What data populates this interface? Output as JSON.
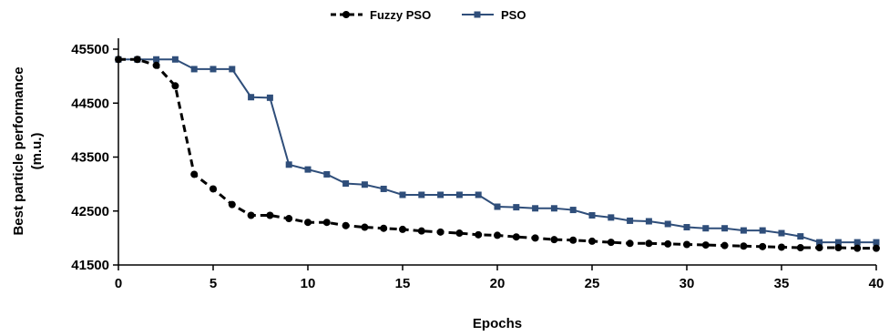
{
  "chart_data": {
    "type": "line",
    "xlabel": "Epochs",
    "ylabel": [
      "Best particle performance",
      "(m.u.)"
    ],
    "xlim": [
      0,
      40
    ],
    "ylim": [
      41500,
      45500
    ],
    "xticks": [
      "0",
      "5",
      "10",
      "15",
      "20",
      "25",
      "30",
      "35",
      "40"
    ],
    "yticks": [
      "41500",
      "42500",
      "43500",
      "44500",
      "45500"
    ],
    "grid": false,
    "legend_position": "top-center",
    "x": [
      0,
      1,
      2,
      3,
      4,
      5,
      6,
      7,
      8,
      9,
      10,
      11,
      12,
      13,
      14,
      15,
      16,
      17,
      18,
      19,
      20,
      21,
      22,
      23,
      24,
      25,
      26,
      27,
      28,
      29,
      30,
      31,
      32,
      33,
      34,
      35,
      36,
      37,
      38,
      39,
      40
    ],
    "series": [
      {
        "name": "Fuzzy PSO",
        "color": "#000000",
        "line_style": "dashed",
        "marker": "circle",
        "values": [
          45310,
          45310,
          45200,
          44820,
          43180,
          42910,
          42620,
          42420,
          42420,
          42360,
          42290,
          42290,
          42230,
          42200,
          42180,
          42160,
          42130,
          42110,
          42090,
          42060,
          42050,
          42020,
          42000,
          41970,
          41960,
          41940,
          41920,
          41900,
          41900,
          41890,
          41880,
          41870,
          41860,
          41850,
          41840,
          41830,
          41820,
          41820,
          41820,
          41810,
          41810
        ]
      },
      {
        "name": "PSO",
        "color": "#2f4e7a",
        "line_style": "solid",
        "marker": "square",
        "values": [
          45310,
          45310,
          45310,
          45310,
          45130,
          45130,
          45130,
          44610,
          44600,
          43360,
          43270,
          43180,
          43010,
          42990,
          42910,
          42800,
          42800,
          42800,
          42800,
          42800,
          42580,
          42570,
          42550,
          42550,
          42520,
          42420,
          42380,
          42320,
          42310,
          42260,
          42200,
          42180,
          42180,
          42140,
          42140,
          42090,
          42030,
          41920,
          41920,
          41920,
          41920
        ]
      }
    ]
  }
}
